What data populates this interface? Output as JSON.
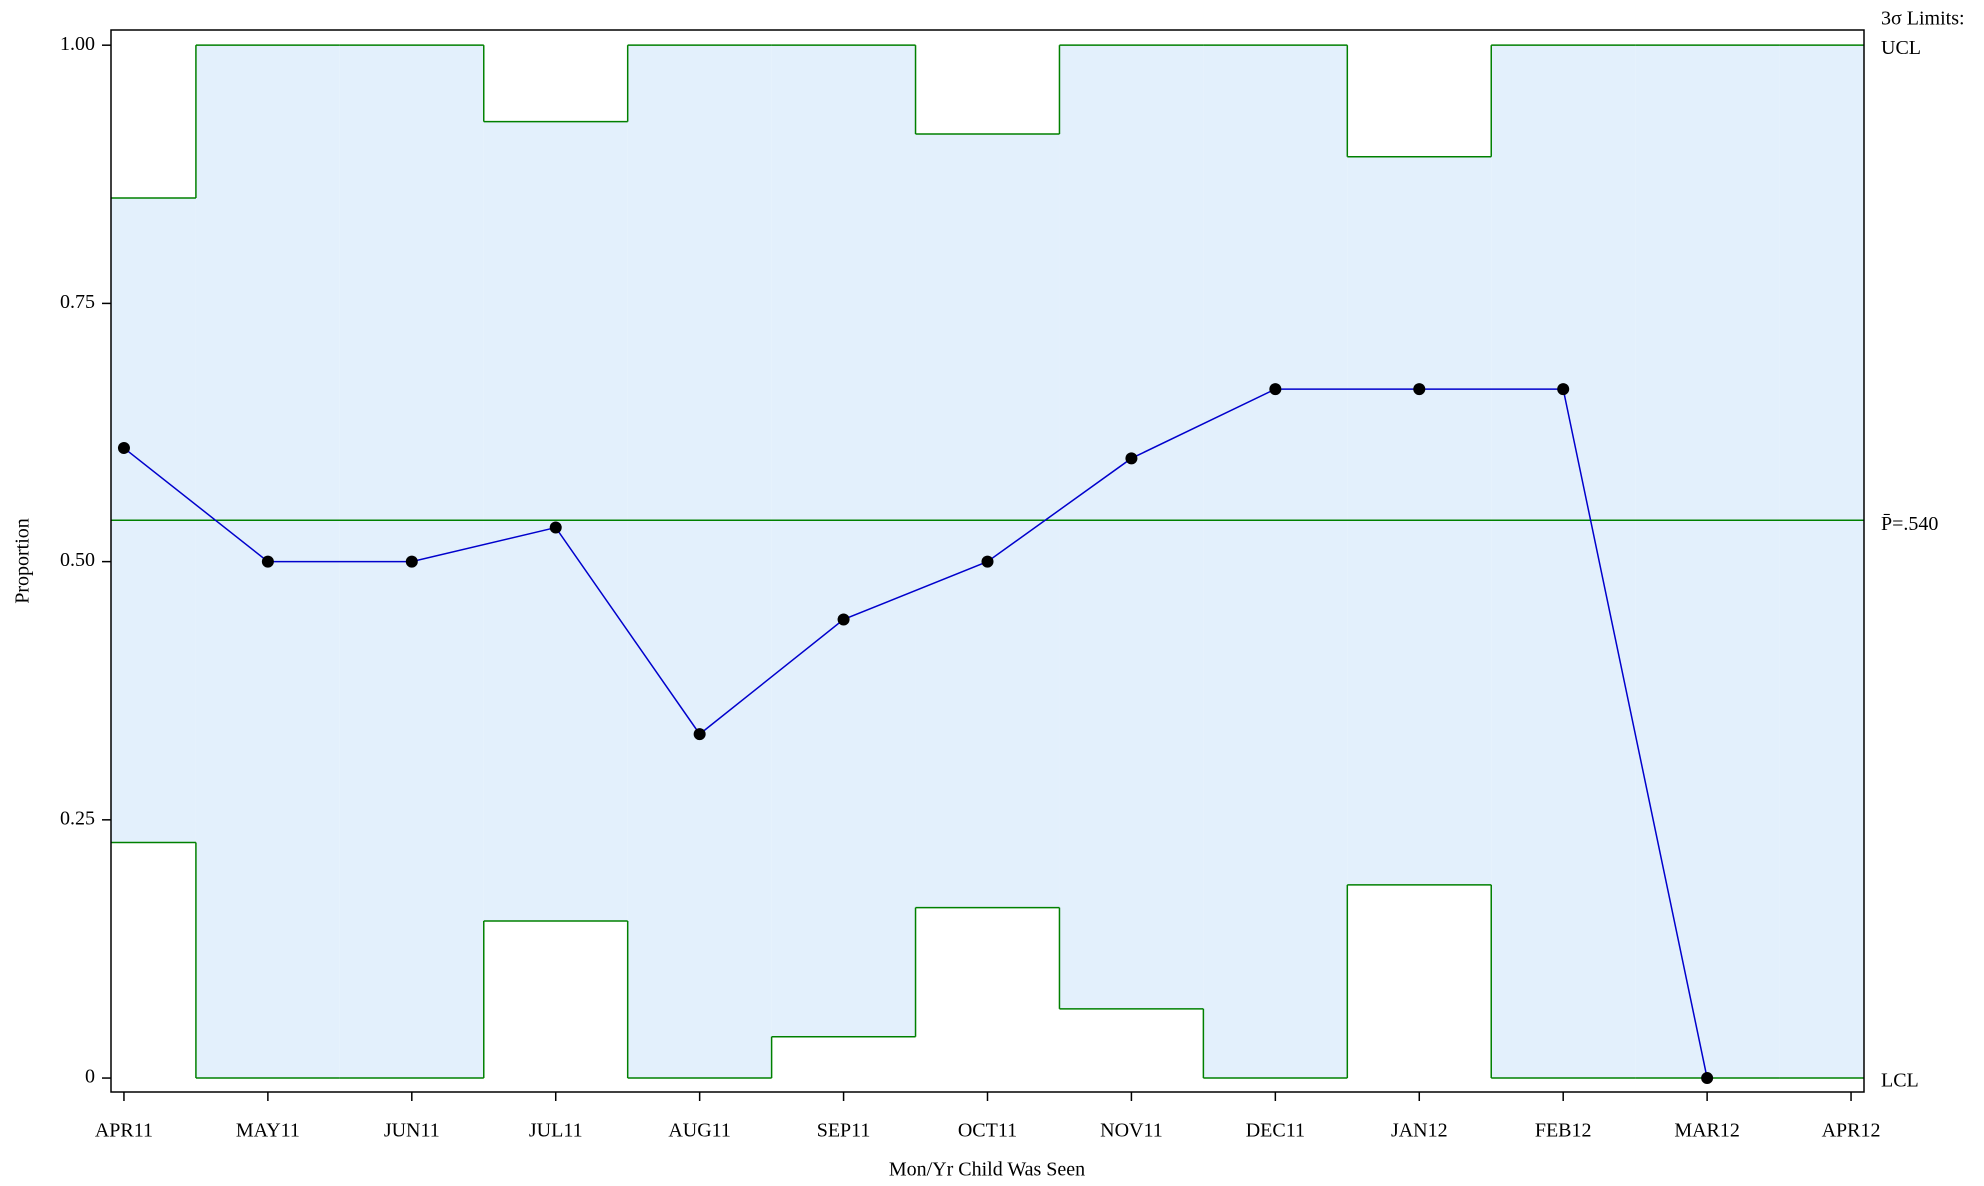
{
  "chart_data": {
    "type": "pchart",
    "x_label": "Mon/Yr Child Was Seen",
    "y_label": "Proportion",
    "limits_title": "3σ Limits:",
    "ucl_label": "UCL",
    "lcl_label": "LCL",
    "categories": [
      "APR11",
      "MAY11",
      "JUN11",
      "JUL11",
      "AUG11",
      "SEP11",
      "OCT11",
      "NOV11",
      "DEC11",
      "JAN12",
      "FEB12",
      "MAR12",
      "APR12"
    ],
    "values": [
      0.61,
      0.5,
      0.5,
      0.533,
      0.333,
      0.444,
      0.5,
      0.6,
      0.667,
      0.667,
      0.667,
      0,
      null
    ],
    "ucl": [
      0.852,
      1,
      1,
      0.926,
      1,
      1,
      0.914,
      1,
      1,
      0.892,
      1,
      1,
      1
    ],
    "lcl": [
      0.228,
      0,
      0,
      0.152,
      0,
      0.04,
      0.165,
      0.067,
      0,
      0.187,
      0,
      0,
      0
    ],
    "center_line": {
      "value": 0.54,
      "label": "P̄=.540"
    },
    "line_color": "#0000cc",
    "marker_color": "#000000",
    "limit_color": "#008000",
    "fill_color": "#e3f0fc",
    "ylim": [
      -0.0135,
      1.0147
    ],
    "yticks": [
      {
        "value": 0,
        "label": "0"
      },
      0.25,
      {
        "value": 0.5,
        "label": "0.50"
      },
      0.75,
      {
        "value": 1,
        "label": "1.00"
      }
    ]
  }
}
